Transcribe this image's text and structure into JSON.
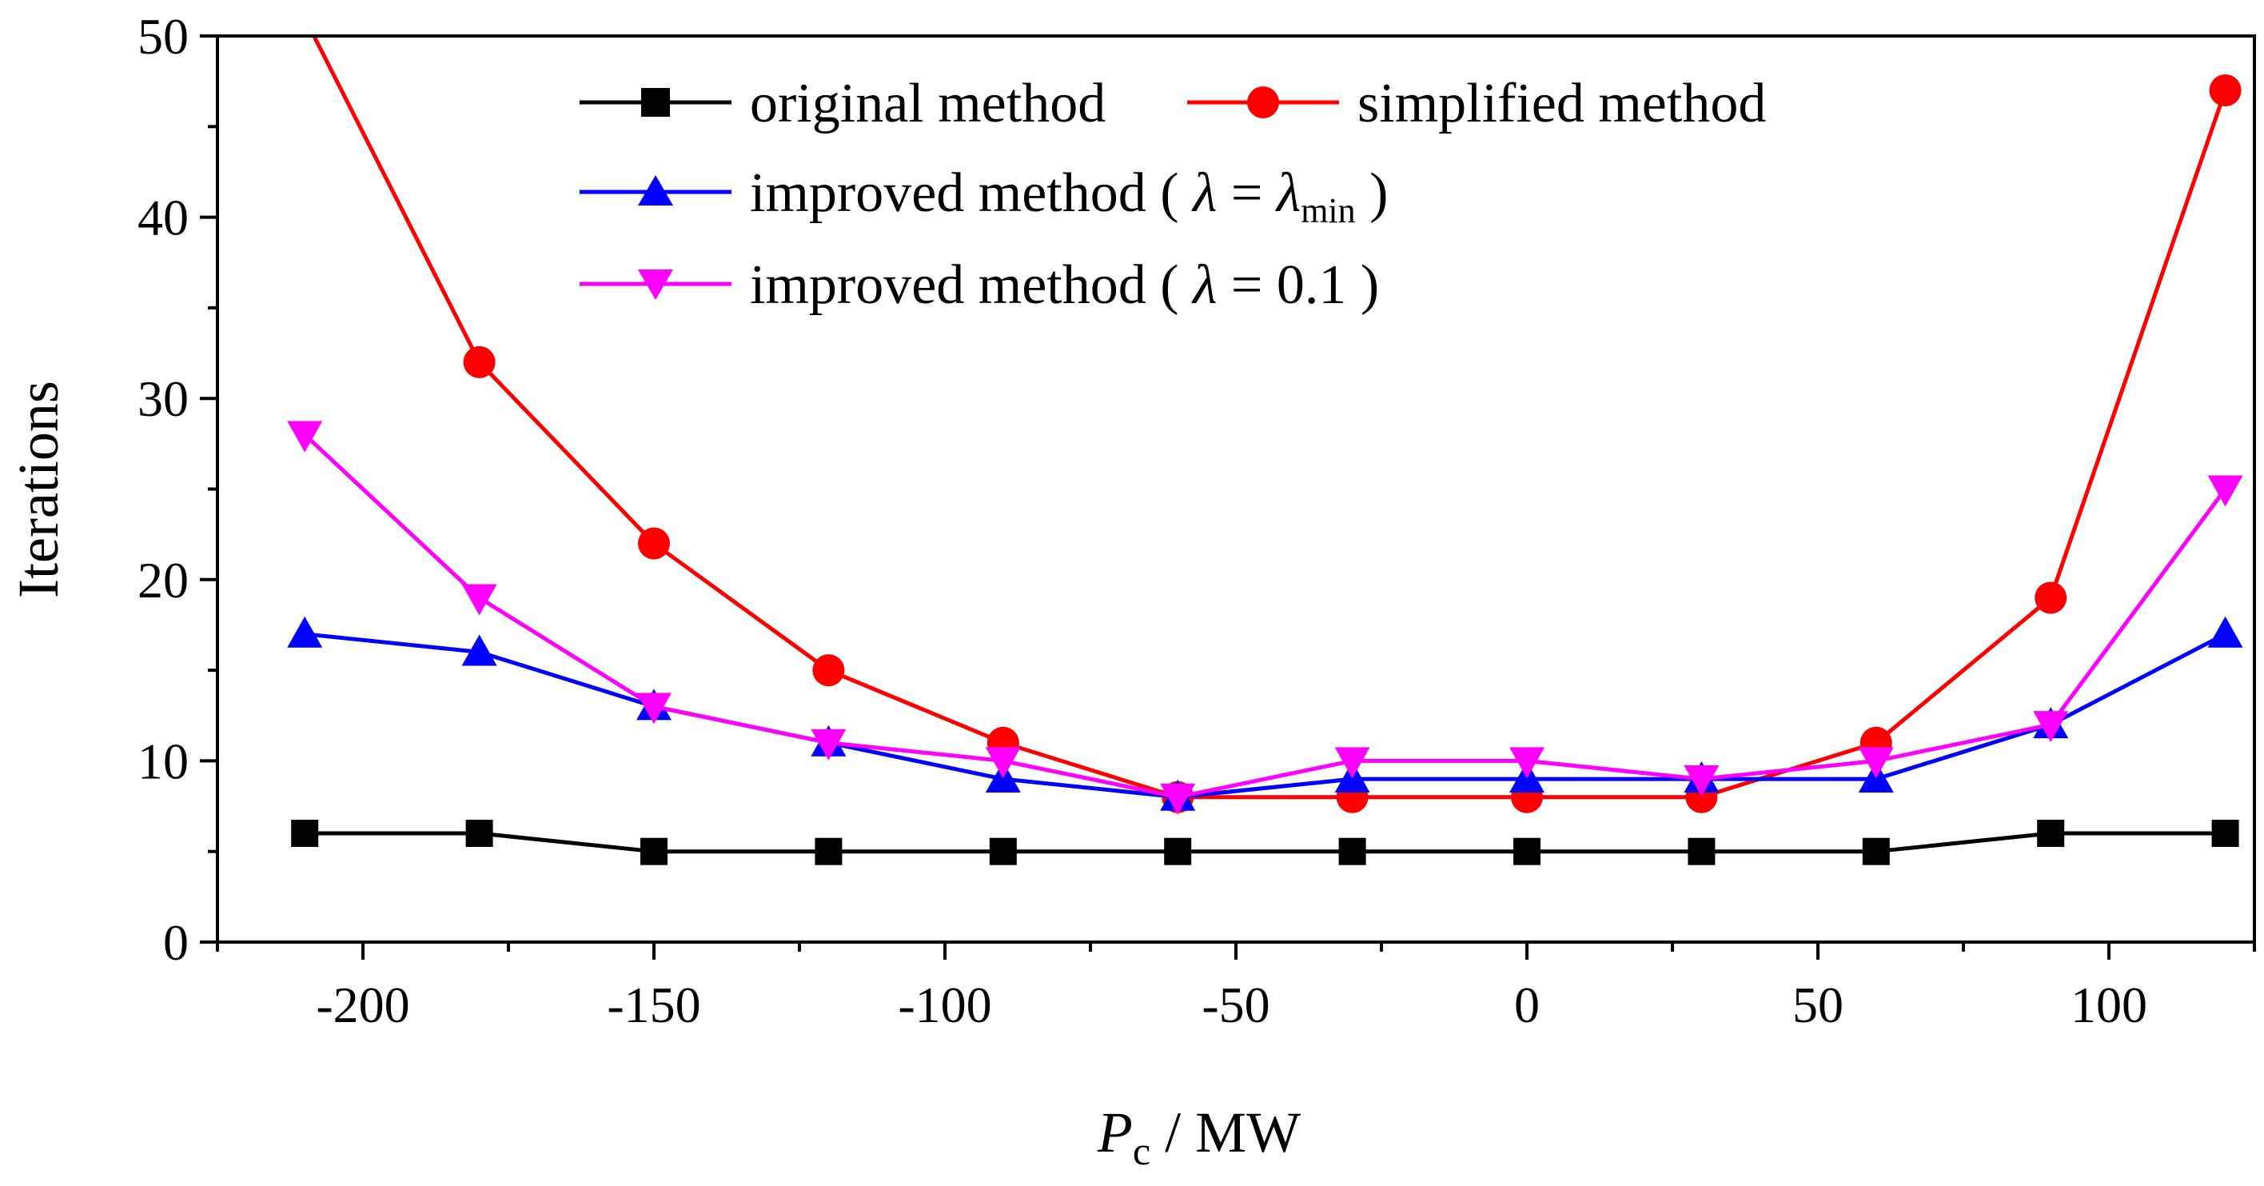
{
  "chart_data": {
    "type": "line",
    "title": "",
    "xlabel": "P",
    "xlabel_subscript": "c",
    "xlabel_unit": " / MW",
    "ylabel": "Iterations",
    "xlim": [
      -225,
      125
    ],
    "ylim": [
      0,
      50
    ],
    "x_ticks": [
      -200,
      -150,
      -100,
      -50,
      0,
      50,
      100
    ],
    "y_ticks": [
      0,
      10,
      20,
      30,
      40,
      50
    ],
    "x": [
      -210,
      -180,
      -150,
      -120,
      -90,
      -60,
      -30,
      0,
      30,
      60,
      90,
      120
    ],
    "series": [
      {
        "name": "original method",
        "color": "#000000",
        "marker": "square",
        "values": [
          6,
          6,
          5,
          5,
          5,
          5,
          5,
          5,
          5,
          5,
          6,
          6
        ],
        "legend": {
          "text": "original method"
        }
      },
      {
        "name": "simplified method",
        "color": "#ff0000",
        "marker": "circle",
        "values": [
          51,
          32,
          22,
          15,
          11,
          8,
          8,
          8,
          8,
          11,
          19,
          47
        ],
        "legend": {
          "text": "simplified method"
        }
      },
      {
        "name": "improved method (λ = λmin)",
        "color": "#0000ff",
        "marker": "triangle-up",
        "values": [
          17,
          16,
          13,
          11,
          9,
          8,
          9,
          9,
          9,
          9,
          12,
          17
        ],
        "legend": {
          "prefix": "improved method ( ",
          "lambda": "λ",
          "middle": " = ",
          "lambda2": "λ",
          "subscript": "min",
          "suffix": " )"
        }
      },
      {
        "name": "improved method (λ = 0.1)",
        "color": "#ff00ff",
        "marker": "triangle-down",
        "values": [
          28,
          19,
          13,
          11,
          10,
          8,
          10,
          10,
          9,
          10,
          12,
          25
        ],
        "legend": {
          "prefix": "improved method ( ",
          "lambda": "λ",
          "middle": " = 0.1 )"
        }
      }
    ],
    "legend_position": "top-center",
    "grid": false
  }
}
